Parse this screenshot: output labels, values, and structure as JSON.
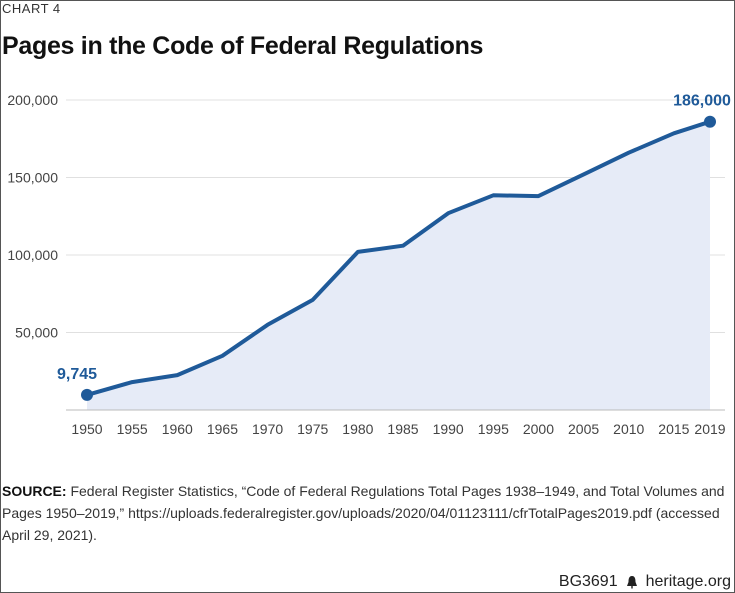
{
  "kicker": "CHART 4",
  "title": "Pages in the Code of Federal Regulations",
  "source_label": "SOURCE:",
  "source_text": "Federal Register Statistics, “Code of Federal Regulations Total Pages 1938–1949, and Total Volumes and Pages 1950–2019,” https://uploads.federalregister.gov/uploads/2020/04/01123111/cfrTotalPages2019.pdf (accessed April 29, 2021).",
  "footer": {
    "code": "BG3691",
    "site": "heritage.org",
    "logo_icon": "liberty-bell-icon"
  },
  "colors": {
    "line": "#1f5a99",
    "fill": "#e6ebf7",
    "grid": "#e0e0e0"
  },
  "chart_data": {
    "type": "area",
    "title": "Pages in the Code of Federal Regulations",
    "xlabel": "",
    "ylabel": "",
    "x": [
      1950,
      1955,
      1960,
      1965,
      1970,
      1975,
      1980,
      1985,
      1990,
      1995,
      2000,
      2005,
      2010,
      2015,
      2019
    ],
    "y": [
      9745,
      18000,
      22500,
      35000,
      55000,
      71000,
      102000,
      106000,
      127000,
      138500,
      138000,
      152000,
      166000,
      178500,
      186000
    ],
    "x_ticks": [
      "1950",
      "1955",
      "1960",
      "1965",
      "1970",
      "1975",
      "1980",
      "1985",
      "1990",
      "1995",
      "2000",
      "2005",
      "2010",
      "2015",
      "2019"
    ],
    "y_ticks": [
      {
        "value": 50000,
        "label": "50,000"
      },
      {
        "value": 100000,
        "label": "100,000"
      },
      {
        "value": 150000,
        "label": "150,000"
      },
      {
        "value": 200000,
        "label": "200,000"
      }
    ],
    "ylim": [
      0,
      200000
    ],
    "grid": true,
    "annotations": [
      {
        "x": 1950,
        "y": 9745,
        "label": "9,745"
      },
      {
        "x": 2019,
        "y": 186000,
        "label": "186,000"
      }
    ]
  }
}
